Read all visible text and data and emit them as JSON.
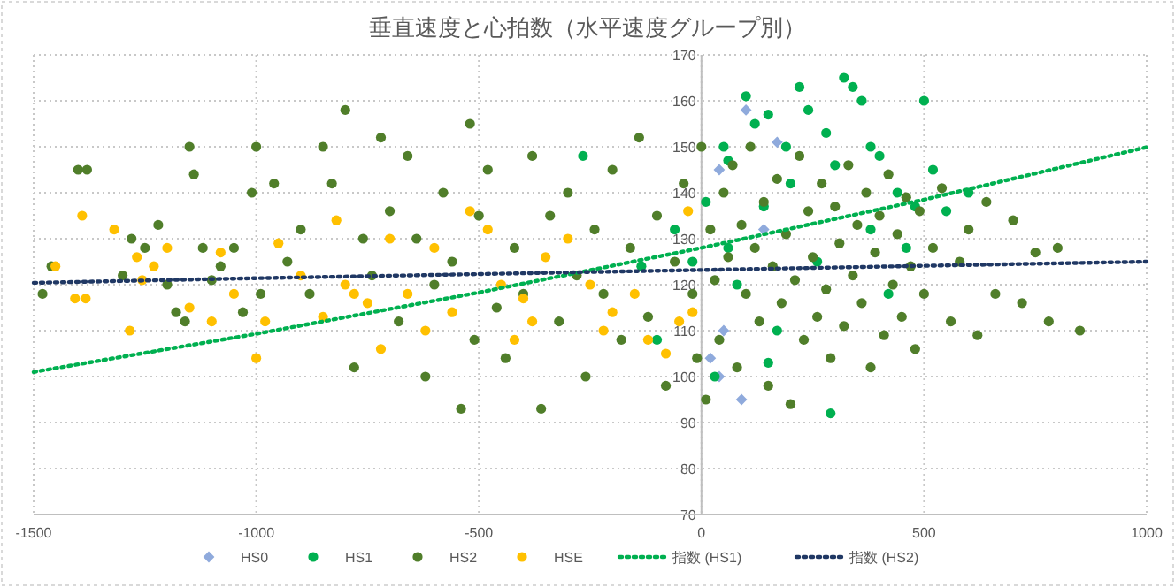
{
  "chart_data": {
    "type": "scatter",
    "title": "垂直速度と心拍数（水平速度グループ別）",
    "xlim": [
      -1500,
      1000
    ],
    "ylim": [
      70,
      170
    ],
    "xticks": [
      -1500,
      -1000,
      -500,
      0,
      500,
      1000
    ],
    "yticks": [
      70,
      80,
      90,
      100,
      110,
      120,
      130,
      140,
      150,
      160,
      170
    ],
    "grid": true,
    "legend": "bottom",
    "series": [
      {
        "name": "HS0",
        "color": "#8faadc",
        "marker": "diamond",
        "x": [
          40,
          50,
          40,
          20,
          100,
          170,
          140,
          90
        ],
        "values": [
          145,
          110,
          100,
          104,
          158,
          151,
          132,
          95
        ]
      },
      {
        "name": "HS1",
        "color": "#00b050",
        "marker": "circle",
        "x": [
          -266,
          -135,
          -100,
          -60,
          -20,
          10,
          30,
          50,
          60,
          80,
          100,
          120,
          140,
          150,
          170,
          190,
          200,
          220,
          240,
          260,
          280,
          290,
          300,
          320,
          340,
          360,
          380,
          400,
          420,
          440,
          460,
          480,
          500,
          520,
          550,
          600,
          380,
          150,
          60
        ],
        "values": [
          148,
          124,
          108,
          132,
          125,
          138,
          100,
          150,
          147,
          120,
          161,
          155,
          137,
          157,
          110,
          150,
          142,
          163,
          158,
          125,
          153,
          92,
          146,
          165,
          163,
          160,
          132,
          148,
          118,
          140,
          128,
          137,
          160,
          145,
          136,
          140,
          150,
          103,
          128
        ]
      },
      {
        "name": "HS2",
        "color": "#507e2a",
        "marker": "circle",
        "x": [
          -1480,
          -1460,
          -1400,
          -1380,
          -1300,
          -1280,
          -1250,
          -1220,
          -1200,
          -1180,
          -1160,
          -1150,
          -1140,
          -1120,
          -1100,
          -1080,
          -1050,
          -1030,
          -1010,
          -1000,
          -990,
          -960,
          -930,
          -900,
          -880,
          -850,
          -830,
          -800,
          -780,
          -760,
          -740,
          -720,
          -700,
          -680,
          -660,
          -640,
          -620,
          -600,
          -580,
          -560,
          -540,
          -520,
          -510,
          -500,
          -480,
          -460,
          -440,
          -420,
          -400,
          -380,
          -360,
          -340,
          -320,
          -300,
          -280,
          -260,
          -240,
          -220,
          -200,
          -180,
          -160,
          -140,
          -120,
          -100,
          -80,
          -60,
          -40,
          -20,
          -10,
          0,
          10,
          20,
          30,
          40,
          50,
          60,
          70,
          80,
          90,
          100,
          110,
          120,
          130,
          140,
          150,
          160,
          170,
          180,
          190,
          200,
          210,
          220,
          230,
          240,
          250,
          260,
          270,
          280,
          290,
          300,
          310,
          320,
          330,
          340,
          350,
          360,
          370,
          380,
          390,
          400,
          410,
          420,
          430,
          440,
          450,
          460,
          470,
          480,
          490,
          500,
          520,
          540,
          560,
          580,
          600,
          620,
          640,
          660,
          700,
          720,
          750,
          780,
          800,
          850
        ],
        "values": [
          118,
          124,
          145,
          145,
          122,
          130,
          128,
          133,
          120,
          114,
          112,
          150,
          144,
          128,
          121,
          124,
          128,
          114,
          140,
          150,
          118,
          142,
          125,
          132,
          118,
          150,
          142,
          158,
          102,
          130,
          122,
          152,
          136,
          112,
          148,
          130,
          100,
          120,
          140,
          125,
          93,
          155,
          108,
          135,
          145,
          115,
          104,
          128,
          118,
          148,
          93,
          135,
          112,
          140,
          122,
          100,
          132,
          118,
          145,
          108,
          128,
          152,
          113,
          135,
          98,
          125,
          142,
          118,
          104,
          150,
          95,
          132,
          121,
          108,
          140,
          126,
          146,
          102,
          133,
          118,
          150,
          128,
          112,
          138,
          98,
          124,
          143,
          116,
          131,
          94,
          121,
          148,
          108,
          136,
          126,
          113,
          142,
          119,
          104,
          137,
          129,
          111,
          146,
          122,
          133,
          116,
          140,
          102,
          127,
          135,
          109,
          144,
          120,
          131,
          113,
          139,
          124,
          106,
          136,
          118,
          128,
          141,
          112,
          125,
          132,
          109,
          138,
          118,
          134,
          116,
          127,
          112,
          128,
          110
        ]
      },
      {
        "name": "HSE",
        "color": "#ffc000",
        "marker": "circle",
        "x": [
          -1451,
          -1391,
          -1319,
          -1407,
          -1383,
          -1284,
          -1268,
          -1256,
          -1230,
          -1200,
          -1150,
          -1100,
          -1080,
          -1050,
          -1000,
          -980,
          -950,
          -900,
          -850,
          -820,
          -800,
          -780,
          -750,
          -720,
          -700,
          -660,
          -620,
          -600,
          -560,
          -520,
          -480,
          -450,
          -420,
          -400,
          -380,
          -350,
          -300,
          -250,
          -220,
          -200,
          -150,
          -120,
          -80,
          -50,
          -30,
          -20
        ],
        "values": [
          124,
          135,
          132,
          117,
          117,
          110,
          126,
          121,
          124,
          128,
          115,
          112,
          127,
          118,
          104,
          112,
          129,
          122,
          113,
          134,
          120,
          118,
          116,
          106,
          130,
          118,
          110,
          128,
          114,
          136,
          132,
          120,
          108,
          117,
          112,
          126,
          130,
          120,
          110,
          114,
          118,
          108,
          105,
          112,
          136,
          114
        ]
      },
      {
        "name": "指数 (HS1)",
        "type": "line",
        "color": "#00b050",
        "line_style": "dotted",
        "marker": "none",
        "x": [
          -1500,
          -1000,
          -500,
          0,
          500,
          1000
        ],
        "values": [
          101,
          109.3,
          118.3,
          128,
          138.5,
          149.9
        ]
      },
      {
        "name": "指数 (HS2)",
        "type": "line",
        "color": "#203864",
        "line_style": "dotted",
        "marker": "none",
        "x": [
          -1500,
          -1000,
          -500,
          0,
          500,
          1000
        ],
        "values": [
          120.4,
          121.4,
          122.3,
          123.2,
          124.1,
          125
        ]
      }
    ]
  }
}
